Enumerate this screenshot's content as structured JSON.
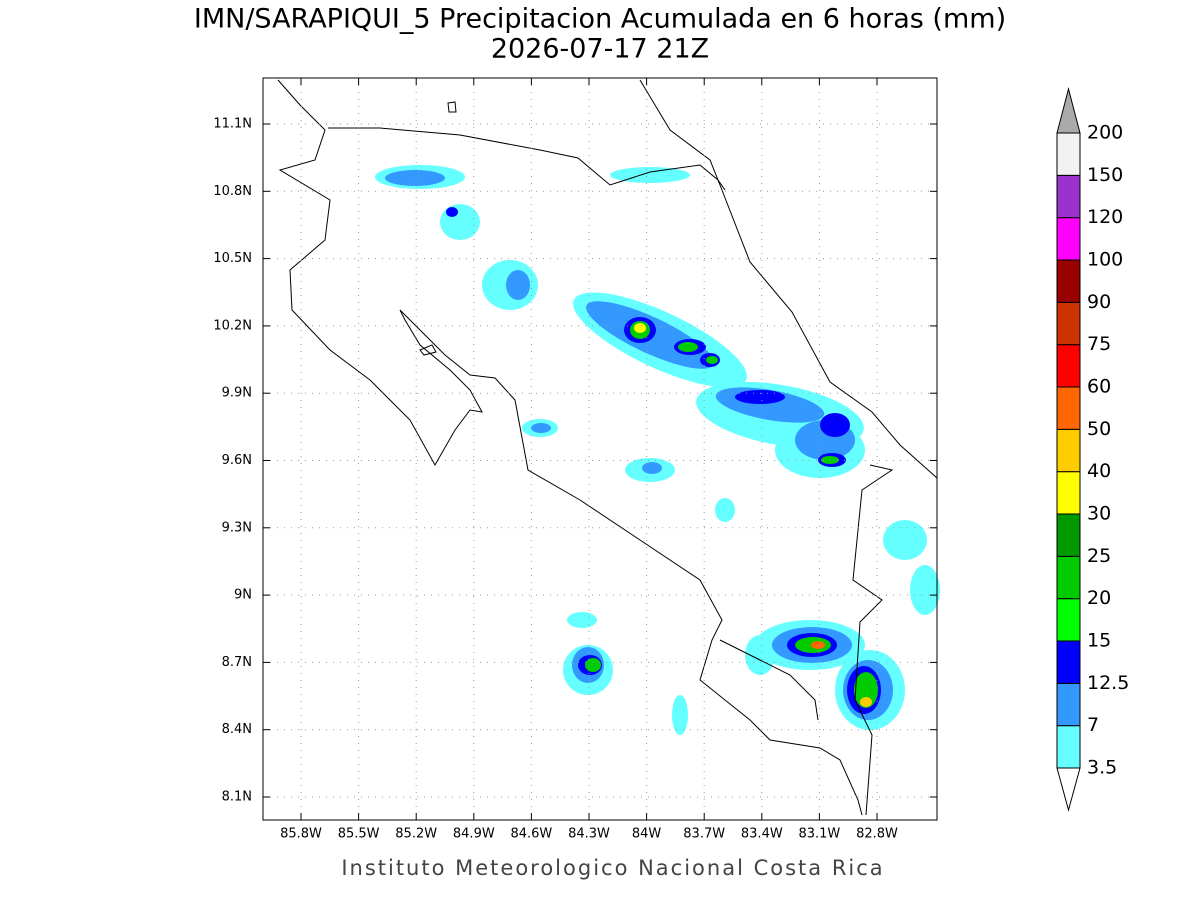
{
  "title": [
    "IMN/SARAPIQUI_5 Precipitacion Acumulada en 6 horas (mm)",
    "2026-07-17 21Z"
  ],
  "footer": "Instituto Meteorologico Nacional Costa Rica",
  "lat_labels": [
    "11.1N",
    "10.8N",
    "10.5N",
    "10.2N",
    "9.9N",
    "9.6N",
    "9.3N",
    "9N",
    "8.7N",
    "8.4N",
    "8.1N"
  ],
  "lon_labels": [
    "85.8W",
    "85.5W",
    "85.2W",
    "84.9W",
    "84.6W",
    "84.3W",
    "84W",
    "83.7W",
    "83.4W",
    "83.1W",
    "82.8W"
  ],
  "colorbar": {
    "labels": [
      "3.5",
      "7",
      "12.5",
      "15",
      "20",
      "25",
      "30",
      "40",
      "50",
      "60",
      "75",
      "90",
      "100",
      "120",
      "150",
      "200"
    ],
    "colors": [
      "#66ffff",
      "#3399ff",
      "#0000ff",
      "#00ff00",
      "#00cc00",
      "#009900",
      "#ffff00",
      "#ffcc00",
      "#ff6600",
      "#ff0000",
      "#cc3300",
      "#990000",
      "#ff00ff",
      "#9933cc",
      "#f2f2f2"
    ],
    "below_color": "#ffffff",
    "above_color": "#aaaaaa"
  }
}
